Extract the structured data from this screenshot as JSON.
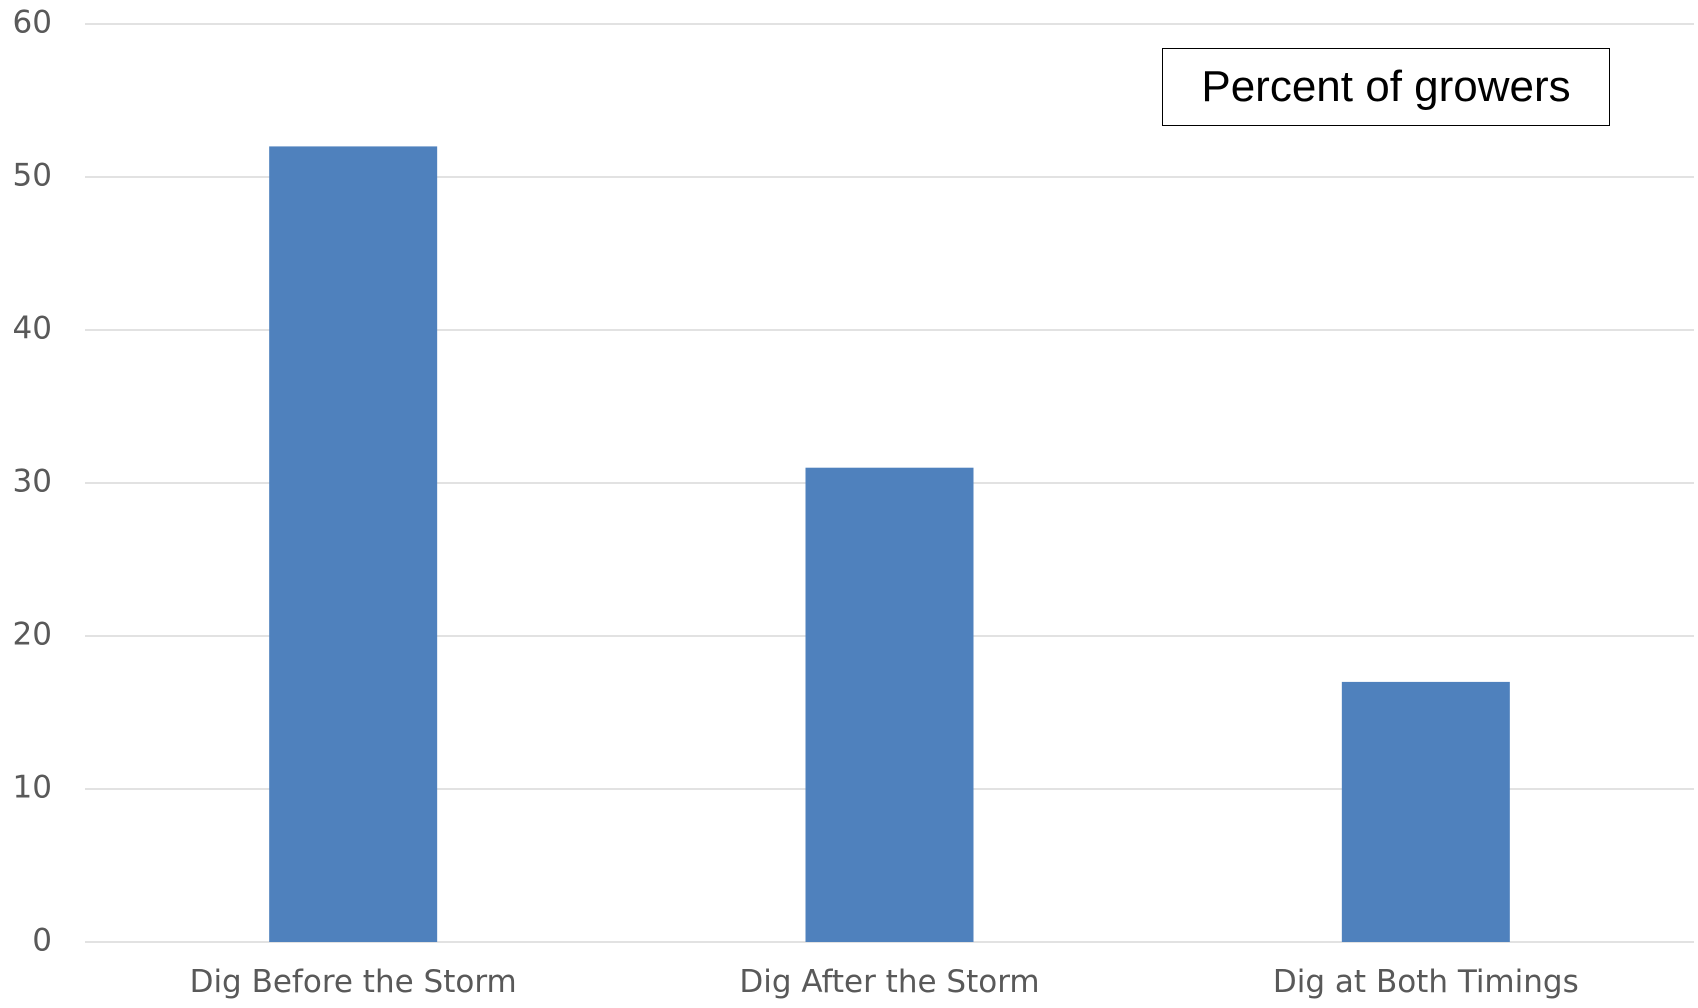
{
  "chart_data": {
    "type": "bar",
    "title": "",
    "xlabel": "",
    "ylabel": "",
    "categories": [
      "Dig Before the Storm",
      "Dig After the Storm",
      "Dig at Both Timings"
    ],
    "series": [
      {
        "values": [
          52,
          31,
          17
        ]
      }
    ],
    "ylim": [
      0,
      60
    ],
    "yticks": [
      0,
      10,
      20,
      30,
      40,
      50,
      60
    ],
    "grid": true,
    "legend": {
      "text": "Percent of growers",
      "placement": "top-right"
    },
    "colors": {
      "bar": "#4f81bd",
      "grid": "#d9d9d9",
      "tick_text": "#595959"
    }
  }
}
